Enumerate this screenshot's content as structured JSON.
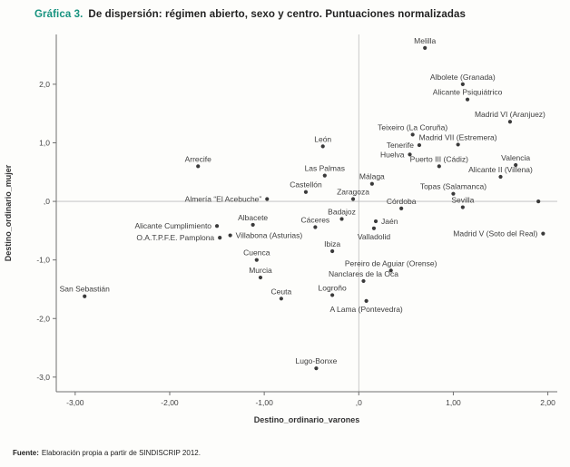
{
  "page": {
    "title_prefix": "Gráfica 3.",
    "title_text": "De dispersión: régimen abierto, sexo y centro. Puntuaciones normalizadas",
    "footer_prefix": "Fuente:",
    "footer_text": "Elaboración propia a partir de SINDISCRIP 2012.",
    "accent_color": "#17937f"
  },
  "chart_data": {
    "type": "scatter",
    "title": "Gráfica 3. De dispersión: régimen abierto, sexo y centro. Puntuaciones normalizadas",
    "xlabel": "Destino_ordinario_varones",
    "ylabel": "Destino_ordinario_mujer",
    "xlim": [
      -3.2,
      2.1
    ],
    "ylim": [
      -3.25,
      2.85
    ],
    "grid": false,
    "point_color": "#3a3a3a",
    "reference_lines": {
      "x": 0,
      "y": 0
    },
    "x_ticks": [
      {
        "v": -3,
        "label": "-3,00"
      },
      {
        "v": -2,
        "label": "-2,00"
      },
      {
        "v": -1,
        "label": "-1,00"
      },
      {
        "v": 0,
        "label": ",0"
      },
      {
        "v": 1,
        "label": "1,00"
      },
      {
        "v": 2,
        "label": "2,00"
      }
    ],
    "y_ticks": [
      {
        "v": 2,
        "label": "2,0"
      },
      {
        "v": 1,
        "label": "1,0"
      },
      {
        "v": 0,
        "label": ",0"
      },
      {
        "v": -1,
        "label": "-1,0"
      },
      {
        "v": -2,
        "label": "-2,0"
      },
      {
        "v": -3,
        "label": "-3,0"
      }
    ],
    "points": [
      {
        "name": "Melilla",
        "x": 0.7,
        "y": 2.62,
        "lp": "above"
      },
      {
        "name": "Albolete (Granada)",
        "x": 1.1,
        "y": 2.0,
        "lp": "above"
      },
      {
        "name": "Alicante Psiquiátrico",
        "x": 1.15,
        "y": 1.74,
        "lp": "above"
      },
      {
        "name": "Madrid VI (Aranjuez)",
        "x": 1.6,
        "y": 1.36,
        "lp": "above"
      },
      {
        "name": "Teixeiro (La Coruña)",
        "x": 0.57,
        "y": 1.14,
        "lp": "above"
      },
      {
        "name": "Tenerife",
        "x": 0.64,
        "y": 0.96,
        "lp": "left"
      },
      {
        "name": "Madrid VII (Estremera)",
        "x": 1.05,
        "y": 0.97,
        "lp": "above"
      },
      {
        "name": "Huelva",
        "x": 0.54,
        "y": 0.8,
        "lp": "left"
      },
      {
        "name": "León",
        "x": -0.38,
        "y": 0.94,
        "lp": "above"
      },
      {
        "name": "Puerto III (Cádiz)",
        "x": 0.85,
        "y": 0.6,
        "lp": "above"
      },
      {
        "name": "Valencia",
        "x": 1.66,
        "y": 0.62,
        "lp": "above"
      },
      {
        "name": "Arrecife",
        "x": -1.7,
        "y": 0.6,
        "lp": "above"
      },
      {
        "name": "Las Palmas",
        "x": -0.36,
        "y": 0.44,
        "lp": "above"
      },
      {
        "name": "Alicante II (Villena)",
        "x": 1.5,
        "y": 0.42,
        "lp": "above"
      },
      {
        "name": "Málaga",
        "x": 0.14,
        "y": 0.3,
        "lp": "above"
      },
      {
        "name": "Castellón",
        "x": -0.56,
        "y": 0.16,
        "lp": "above"
      },
      {
        "name": "Topas (Salamanca)",
        "x": 1.0,
        "y": 0.13,
        "lp": "above"
      },
      {
        "name": "Zaragoza",
        "x": -0.06,
        "y": 0.04,
        "lp": "above"
      },
      {
        "name": "Almería “El Acebuche”",
        "x": -0.97,
        "y": 0.04,
        "lp": "left"
      },
      {
        "name": "Córdoba",
        "x": 0.45,
        "y": -0.12,
        "lp": "above"
      },
      {
        "name": "Sevilla",
        "x": 1.1,
        "y": -0.1,
        "lp": "above"
      },
      {
        "name": "",
        "x": 1.9,
        "y": 0.0,
        "lp": "none"
      },
      {
        "name": "Albacete",
        "x": -1.12,
        "y": -0.4,
        "lp": "above"
      },
      {
        "name": "Cáceres",
        "x": -0.46,
        "y": -0.44,
        "lp": "above"
      },
      {
        "name": "Badajoz",
        "x": -0.18,
        "y": -0.3,
        "lp": "above"
      },
      {
        "name": "Jaén",
        "x": 0.18,
        "y": -0.34,
        "lp": "right"
      },
      {
        "name": "Valladolid",
        "x": 0.16,
        "y": -0.46,
        "lp": "below"
      },
      {
        "name": "Alicante Cumplimiento",
        "x": -1.5,
        "y": -0.42,
        "lp": "left"
      },
      {
        "name": "O.A.T.P.F.E. Pamplona",
        "x": -1.47,
        "y": -0.62,
        "lp": "left"
      },
      {
        "name": "Villabona (Asturias)",
        "x": -1.36,
        "y": -0.58,
        "lp": "right"
      },
      {
        "name": "Madrid V (Soto del Real)",
        "x": 1.95,
        "y": -0.55,
        "lp": "left"
      },
      {
        "name": "Ibiza",
        "x": -0.28,
        "y": -0.85,
        "lp": "above"
      },
      {
        "name": "Cuenca",
        "x": -1.08,
        "y": -1.0,
        "lp": "above"
      },
      {
        "name": "Murcia",
        "x": -1.04,
        "y": -1.3,
        "lp": "above"
      },
      {
        "name": "Nanclares de la Oca",
        "x": 0.05,
        "y": -1.36,
        "lp": "above"
      },
      {
        "name": "Pereiro de Aguiar (Orense)",
        "x": 0.34,
        "y": -1.18,
        "lp": "above"
      },
      {
        "name": "San Sebastián",
        "x": -2.9,
        "y": -1.62,
        "lp": "above"
      },
      {
        "name": "Ceuta",
        "x": -0.82,
        "y": -1.66,
        "lp": "above"
      },
      {
        "name": "Logroño",
        "x": -0.28,
        "y": -1.6,
        "lp": "above"
      },
      {
        "name": "A Lama (Pontevedra)",
        "x": 0.08,
        "y": -1.7,
        "lp": "below"
      },
      {
        "name": "Lugo-Bonxe",
        "x": -0.45,
        "y": -2.85,
        "lp": "above"
      }
    ]
  }
}
